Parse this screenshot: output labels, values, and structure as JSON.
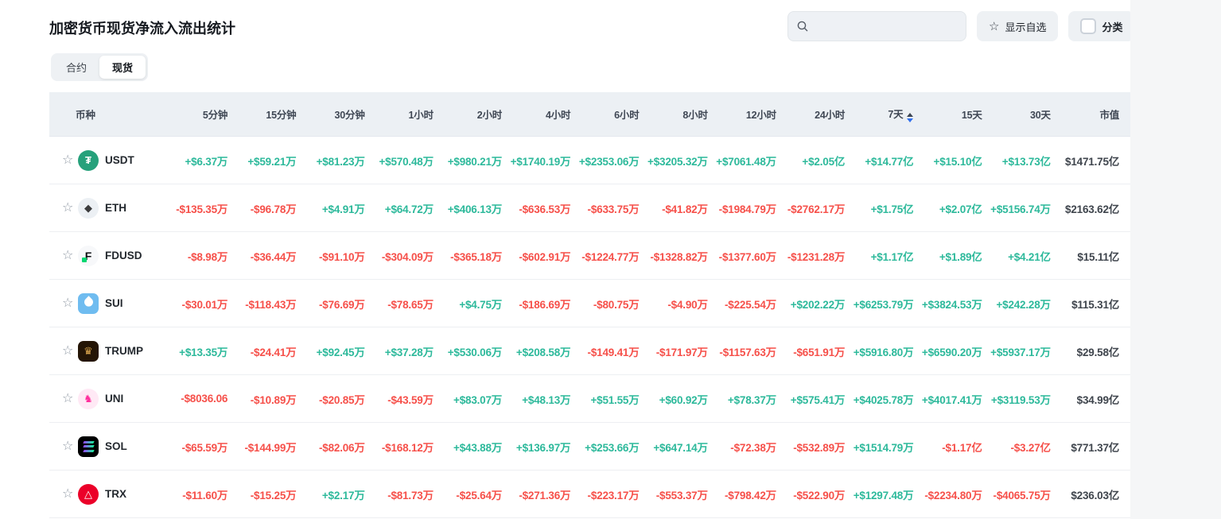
{
  "page": {
    "title": "加密货币现货净流入流出统计",
    "tabs": [
      {
        "label": "合约",
        "active": false
      },
      {
        "label": "现货",
        "active": true
      }
    ],
    "search": {
      "placeholder": "",
      "value": ""
    },
    "show_favorites_label": "显示自选",
    "category_label": "分类",
    "category_checked": false
  },
  "colors": {
    "positive": "#2db99b",
    "negative": "#f6504a",
    "header_bg": "#ecf0f4",
    "sort_active": "#2f6fed"
  },
  "icons": {
    "search": "magnifier-icon",
    "favorite": "star-icon",
    "sort": "sort-arrows-icon"
  },
  "table": {
    "columns": [
      "币种",
      "5分钟",
      "15分钟",
      "30分钟",
      "1小时",
      "2小时",
      "4小时",
      "6小时",
      "8小时",
      "12小时",
      "24小时",
      "7天",
      "15天",
      "30天",
      "市值"
    ],
    "sort": {
      "column": "7天",
      "direction": "desc"
    },
    "rows": [
      {
        "symbol": "USDT",
        "logo": {
          "name": "usdt-logo",
          "shape": "circle",
          "bg": "#26a17b",
          "glyph": "₮",
          "fg": "#ffffff"
        },
        "values": [
          "+$6.37万",
          "+$59.21万",
          "+$81.23万",
          "+$570.48万",
          "+$980.21万",
          "+$1740.19万",
          "+$2353.06万",
          "+$3205.32万",
          "+$7061.48万",
          "+$2.05亿",
          "+$14.77亿",
          "+$15.10亿",
          "+$13.73亿"
        ],
        "market_cap": "$1471.75亿"
      },
      {
        "symbol": "ETH",
        "logo": {
          "name": "eth-logo",
          "shape": "circle",
          "bg": "#ecf0f4",
          "glyph": "◆",
          "fg": "#3c3c3d"
        },
        "values": [
          "-$135.35万",
          "-$96.78万",
          "+$4.91万",
          "+$64.72万",
          "+$406.13万",
          "-$636.53万",
          "-$633.75万",
          "-$41.82万",
          "-$1984.79万",
          "-$2762.17万",
          "+$1.75亿",
          "+$2.07亿",
          "+$5156.74万"
        ],
        "market_cap": "$2163.62亿"
      },
      {
        "symbol": "FDUSD",
        "logo": {
          "name": "fdusd-logo",
          "shape": "circle",
          "bg": "#f7f8fa",
          "glyph": "F",
          "fg": "#0b0e11",
          "accent": "#00d66f"
        },
        "values": [
          "-$8.98万",
          "-$36.44万",
          "-$91.10万",
          "-$304.09万",
          "-$365.18万",
          "-$602.91万",
          "-$1224.77万",
          "-$1328.82万",
          "-$1377.60万",
          "-$1231.28万",
          "+$1.17亿",
          "+$1.89亿",
          "+$4.21亿"
        ],
        "market_cap": "$15.11亿"
      },
      {
        "symbol": "SUI",
        "logo": {
          "name": "sui-logo",
          "shape": "square",
          "bg": "#6fbcf0",
          "special": "drop"
        },
        "values": [
          "-$30.01万",
          "-$118.43万",
          "-$76.69万",
          "-$78.65万",
          "+$4.75万",
          "-$186.69万",
          "-$80.75万",
          "-$4.90万",
          "-$225.54万",
          "+$202.22万",
          "+$6253.79万",
          "+$3824.53万",
          "+$242.28万"
        ],
        "market_cap": "$115.31亿"
      },
      {
        "symbol": "TRUMP",
        "logo": {
          "name": "trump-logo",
          "shape": "square",
          "bg": "#241505",
          "glyph": "♛",
          "fg": "#d8a34c"
        },
        "values": [
          "+$13.35万",
          "-$24.41万",
          "+$92.45万",
          "+$37.28万",
          "+$530.06万",
          "+$208.58万",
          "-$149.41万",
          "-$171.97万",
          "-$1157.63万",
          "-$651.91万",
          "+$5916.80万",
          "+$6590.20万",
          "+$5937.17万"
        ],
        "market_cap": "$29.58亿"
      },
      {
        "symbol": "UNI",
        "logo": {
          "name": "uni-logo",
          "shape": "circle",
          "bg": "#ffe9f5",
          "glyph": "♞",
          "fg": "#ff2d9c"
        },
        "values": [
          "-$8036.06",
          "-$10.89万",
          "-$20.85万",
          "-$43.59万",
          "+$83.07万",
          "+$48.13万",
          "+$51.55万",
          "+$60.92万",
          "+$78.37万",
          "+$575.41万",
          "+$4025.78万",
          "+$4017.41万",
          "+$3119.53万"
        ],
        "market_cap": "$34.99亿"
      },
      {
        "symbol": "SOL",
        "logo": {
          "name": "sol-logo",
          "shape": "square",
          "bg": "#000000",
          "special": "sol-bars"
        },
        "values": [
          "-$65.59万",
          "-$144.99万",
          "-$82.06万",
          "-$168.12万",
          "+$43.88万",
          "+$136.97万",
          "+$253.66万",
          "+$647.14万",
          "-$72.38万",
          "-$532.89万",
          "+$1514.79万",
          "-$1.17亿",
          "-$3.27亿"
        ],
        "market_cap": "$771.37亿"
      },
      {
        "symbol": "TRX",
        "logo": {
          "name": "trx-logo",
          "shape": "circle",
          "bg": "#eb0029",
          "glyph": "△",
          "fg": "#ffffff"
        },
        "values": [
          "-$11.60万",
          "-$15.25万",
          "+$2.17万",
          "-$81.73万",
          "-$25.64万",
          "-$271.36万",
          "-$223.17万",
          "-$553.37万",
          "-$798.42万",
          "-$522.90万",
          "+$1297.48万",
          "-$2234.80万",
          "-$4065.75万"
        ],
        "market_cap": "$236.03亿"
      }
    ]
  }
}
